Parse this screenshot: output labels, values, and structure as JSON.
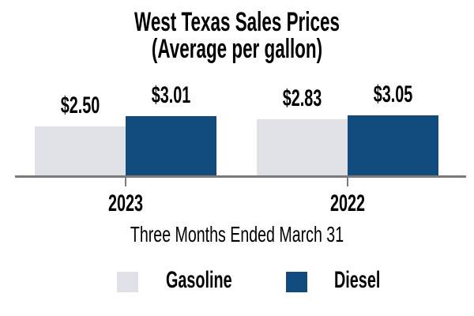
{
  "chart_data": {
    "type": "bar",
    "title": "West Texas Sales Prices",
    "subtitle": "(Average per gallon)",
    "xlabel": "Three Months Ended March 31",
    "categories": [
      "2023",
      "2022"
    ],
    "series": [
      {
        "name": "Gasoline",
        "color": "#dfe1e6",
        "values": [
          2.5,
          2.83
        ],
        "labels": [
          "$2.50",
          "$2.83"
        ]
      },
      {
        "name": "Diesel",
        "color": "#114a7d",
        "values": [
          3.01,
          3.05
        ],
        "labels": [
          "$3.01",
          "$3.05"
        ]
      }
    ],
    "ylim": [
      0,
      3.2
    ],
    "grid": false,
    "legend_position": "bottom",
    "axis_color": "#7a7a7a",
    "text_color": "#000000",
    "background": "#ffffff"
  }
}
